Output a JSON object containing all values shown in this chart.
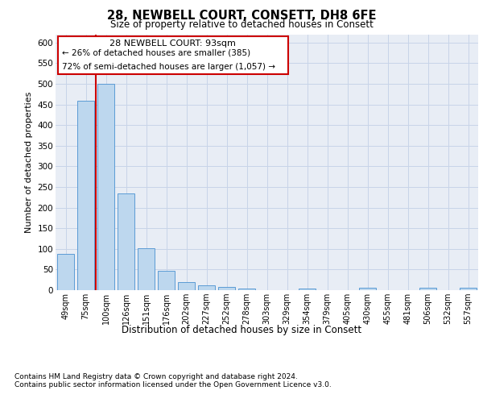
{
  "title1": "28, NEWBELL COURT, CONSETT, DH8 6FE",
  "title2": "Size of property relative to detached houses in Consett",
  "xlabel": "Distribution of detached houses by size in Consett",
  "ylabel": "Number of detached properties",
  "categories": [
    "49sqm",
    "75sqm",
    "100sqm",
    "126sqm",
    "151sqm",
    "176sqm",
    "202sqm",
    "227sqm",
    "252sqm",
    "278sqm",
    "303sqm",
    "329sqm",
    "354sqm",
    "379sqm",
    "405sqm",
    "430sqm",
    "455sqm",
    "481sqm",
    "506sqm",
    "532sqm",
    "557sqm"
  ],
  "values": [
    88,
    458,
    500,
    235,
    102,
    47,
    19,
    12,
    7,
    4,
    0,
    0,
    4,
    0,
    0,
    5,
    0,
    0,
    5,
    0,
    5
  ],
  "bar_color": "#bdd7ee",
  "bar_edge_color": "#5b9bd5",
  "property_line_x": 1.5,
  "annotation_title": "28 NEWBELL COURT: 93sqm",
  "annotation_line1": "← 26% of detached houses are smaller (385)",
  "annotation_line2": "72% of semi-detached houses are larger (1,057) →",
  "annotation_box_color": "#ffffff",
  "annotation_box_edge": "#cc0000",
  "property_line_color": "#cc0000",
  "grid_color": "#c8d4e8",
  "plot_background": "#e8edf5",
  "ylim": [
    0,
    620
  ],
  "yticks": [
    0,
    50,
    100,
    150,
    200,
    250,
    300,
    350,
    400,
    450,
    500,
    550,
    600
  ],
  "footnote1": "Contains HM Land Registry data © Crown copyright and database right 2024.",
  "footnote2": "Contains public sector information licensed under the Open Government Licence v3.0."
}
